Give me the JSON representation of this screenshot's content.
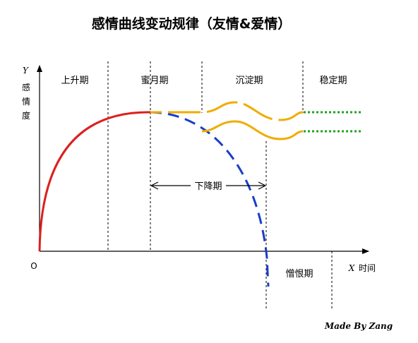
{
  "title": "感情曲线变动规律（友情&爱情）",
  "axes": {
    "y_var": "Y",
    "y_chars": [
      "感",
      "情",
      "度"
    ],
    "x_var": "X",
    "x_label": "时间",
    "origin": "O"
  },
  "phases": {
    "rise": "上升期",
    "honeymoon": "蜜月期",
    "settle": "沉淀期",
    "stable": "稳定期",
    "decline": "下降期",
    "regret": "憎恨期"
  },
  "credit": "Made By Zang",
  "colors": {
    "rise_curve": "#dd1f1f",
    "decline_curve": "#1a3ec8",
    "friendship_curve": "#f0ac00",
    "stable_dotted": "#24a024",
    "axis": "#000000"
  },
  "icons": {
    "arrow_left": "arrow-left-icon",
    "arrow_right": "arrow-right-icon"
  }
}
